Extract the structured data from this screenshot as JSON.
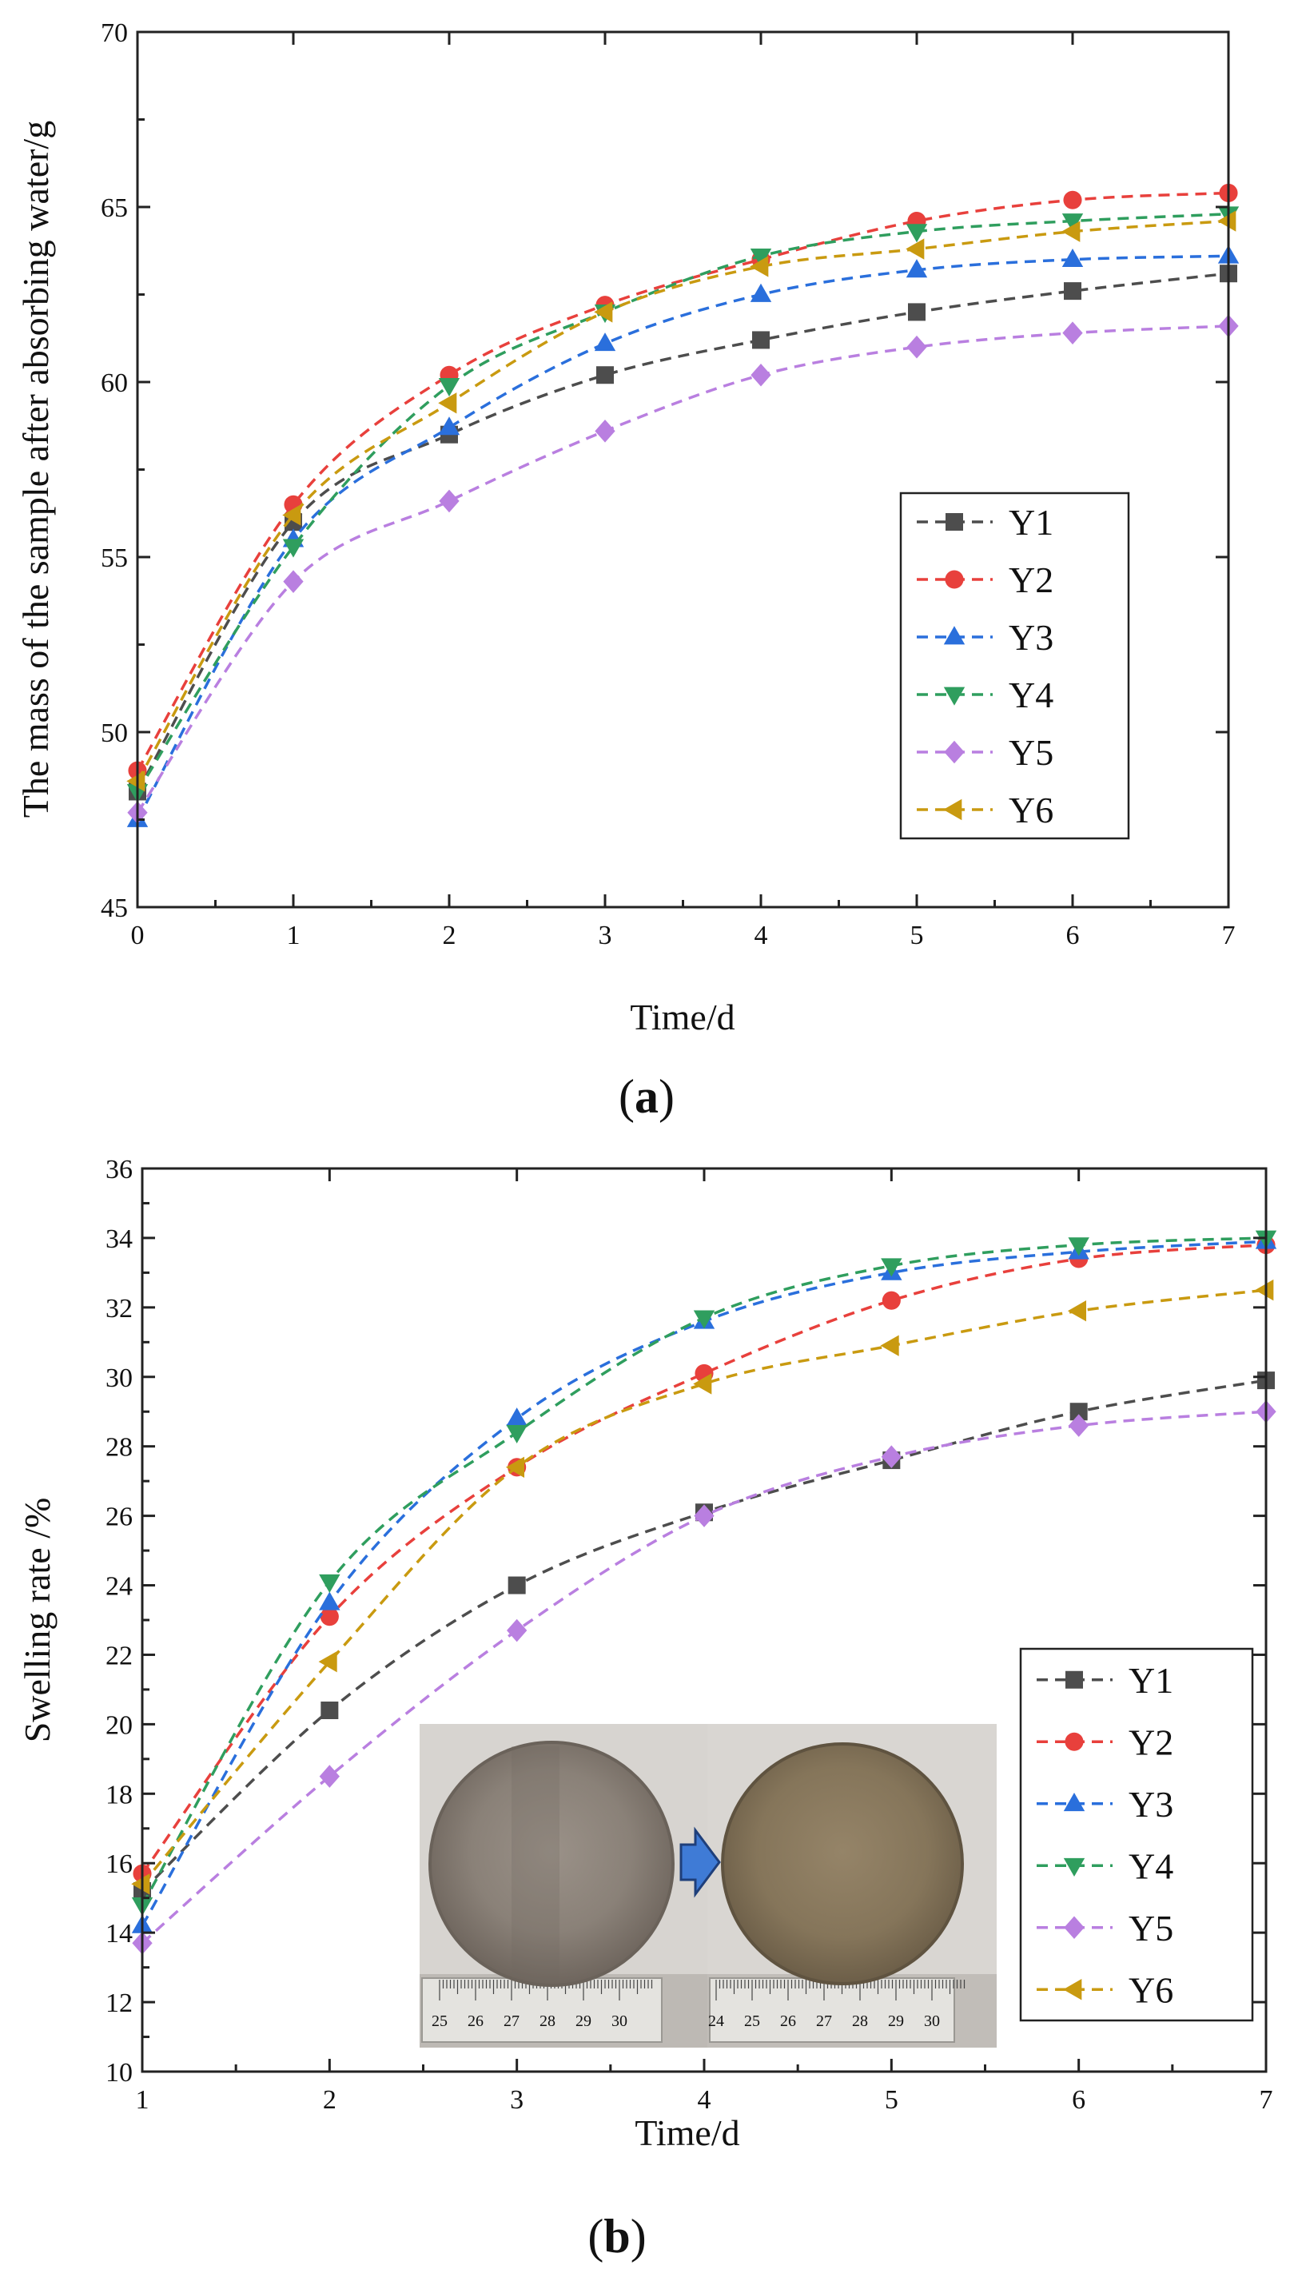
{
  "figure": {
    "panel_a_label": {
      "open": "(",
      "letter": "a",
      "close": ")"
    },
    "panel_b_label": {
      "open": "(",
      "letter": "b",
      "close": ")"
    }
  },
  "series_colors": {
    "Y1": "#4d4d4d",
    "Y2": "#e8403c",
    "Y3": "#2a6fdc",
    "Y4": "#2f9e5e",
    "Y5": "#b97fe0",
    "Y6": "#c99a10"
  },
  "series_markers": {
    "Y1": "square-marker-icon",
    "Y2": "circle-marker-icon",
    "Y3": "triangle-up-marker-icon",
    "Y4": "triangle-down-marker-icon",
    "Y5": "diamond-marker-icon",
    "Y6": "triangle-left-marker-icon"
  },
  "chart_data": [
    {
      "type": "line",
      "title": "",
      "xlabel": "Time/d",
      "ylabel": "The mass of the sample after absorbing water/g",
      "xlim": [
        0,
        7
      ],
      "ylim": [
        45,
        70
      ],
      "xticks": [
        "0",
        "1",
        "2",
        "3",
        "4",
        "5",
        "6",
        "7"
      ],
      "yticks": [
        "45",
        "50",
        "55",
        "60",
        "65",
        "70"
      ],
      "legend_position": "right-middle",
      "x": [
        0,
        1,
        2,
        3,
        4,
        5,
        6,
        7
      ],
      "series": [
        {
          "name": "Y1",
          "values": [
            48.3,
            56.0,
            58.5,
            60.2,
            61.2,
            62.0,
            62.6,
            63.1
          ]
        },
        {
          "name": "Y2",
          "values": [
            48.9,
            56.5,
            60.2,
            62.2,
            63.5,
            64.6,
            65.2,
            65.4
          ]
        },
        {
          "name": "Y3",
          "values": [
            47.5,
            55.5,
            58.7,
            61.1,
            62.5,
            63.2,
            63.5,
            63.6
          ]
        },
        {
          "name": "Y4",
          "values": [
            48.3,
            55.3,
            59.9,
            62.0,
            63.6,
            64.3,
            64.6,
            64.8
          ]
        },
        {
          "name": "Y5",
          "values": [
            47.7,
            54.3,
            56.6,
            58.6,
            60.2,
            61.0,
            61.4,
            61.6
          ]
        },
        {
          "name": "Y6",
          "values": [
            48.6,
            56.2,
            59.4,
            62.0,
            63.3,
            63.8,
            64.3,
            64.6
          ]
        }
      ]
    },
    {
      "type": "line",
      "title": "",
      "xlabel": "Time/d",
      "ylabel": "Swelling rate /%",
      "xlim": [
        1,
        7
      ],
      "ylim": [
        10,
        36
      ],
      "xticks": [
        "1",
        "2",
        "3",
        "4",
        "5",
        "6",
        "7"
      ],
      "yticks": [
        "10",
        "12",
        "14",
        "16",
        "18",
        "20",
        "22",
        "24",
        "26",
        "28",
        "30",
        "32",
        "34",
        "36"
      ],
      "legend_position": "bottom-right",
      "x": [
        1,
        2,
        3,
        4,
        5,
        6,
        7
      ],
      "series": [
        {
          "name": "Y1",
          "values": [
            15.2,
            20.4,
            24.0,
            26.1,
            27.6,
            29.0,
            29.9
          ]
        },
        {
          "name": "Y2",
          "values": [
            15.7,
            23.1,
            27.4,
            30.1,
            32.2,
            33.4,
            33.8
          ]
        },
        {
          "name": "Y3",
          "values": [
            14.2,
            23.5,
            28.8,
            31.6,
            33.0,
            33.6,
            33.9
          ]
        },
        {
          "name": "Y4",
          "values": [
            14.8,
            24.1,
            28.4,
            31.7,
            33.2,
            33.8,
            34.0
          ]
        },
        {
          "name": "Y5",
          "values": [
            13.7,
            18.5,
            22.7,
            26.0,
            27.7,
            28.6,
            29.0
          ]
        },
        {
          "name": "Y6",
          "values": [
            15.4,
            21.8,
            27.4,
            29.8,
            30.9,
            31.9,
            32.5
          ]
        }
      ]
    }
  ],
  "inset_photo": {
    "arrow_icon": "right-arrow-icon",
    "ruler_numbers_before": [
      "25",
      "26",
      "27",
      "28",
      "29",
      "30"
    ],
    "ruler_numbers_after": [
      "24",
      "25",
      "26",
      "27",
      "28",
      "29",
      "30"
    ],
    "disc_color_before": "#8e857c",
    "disc_color_after": "#8a7a60",
    "arrow_color": "#3f7bd6"
  }
}
